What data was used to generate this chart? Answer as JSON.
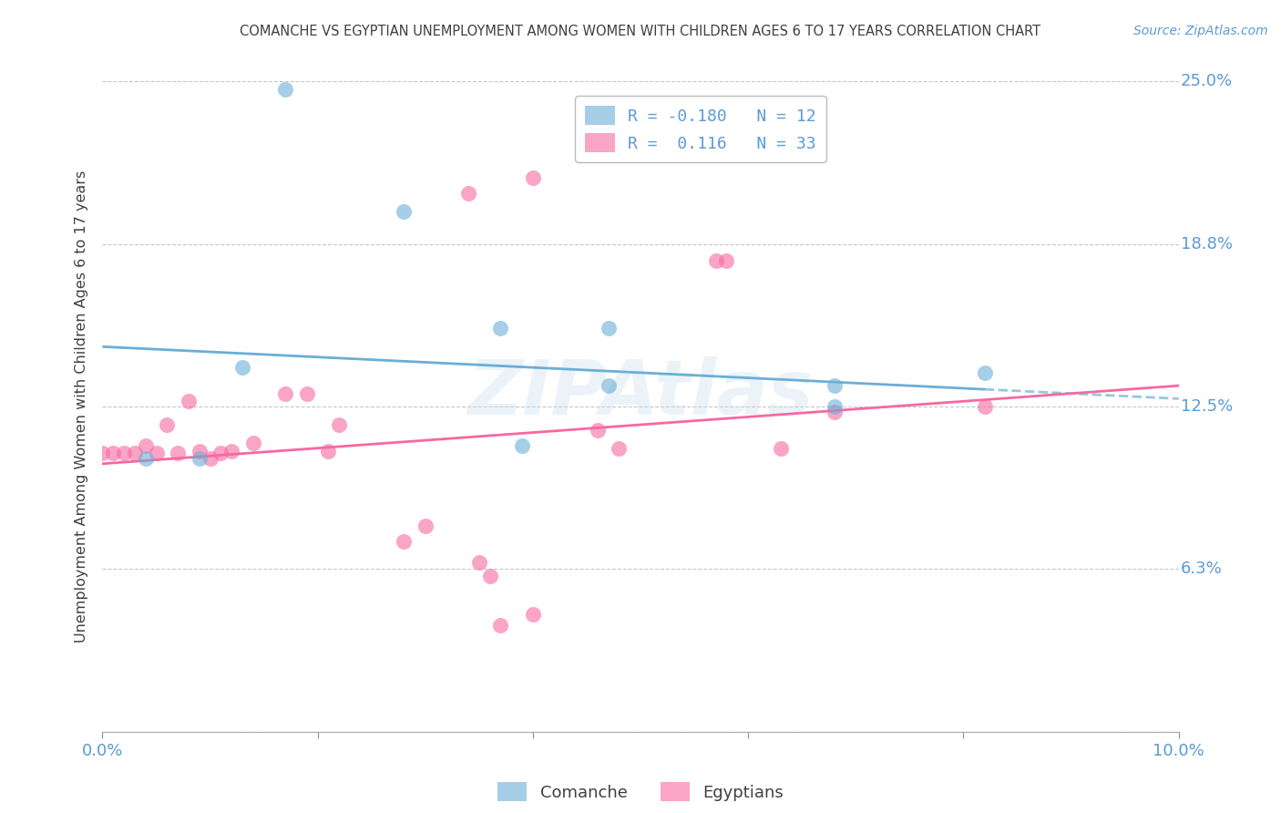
{
  "title": "COMANCHE VS EGYPTIAN UNEMPLOYMENT AMONG WOMEN WITH CHILDREN AGES 6 TO 17 YEARS CORRELATION CHART",
  "source": "Source: ZipAtlas.com",
  "ylabel": "Unemployment Among Women with Children Ages 6 to 17 years",
  "ylim": [
    0.0,
    0.25
  ],
  "xlim": [
    0.0,
    0.1
  ],
  "comanche_color": "#6baed6",
  "egyptians_color": "#f768a1",
  "comanche_R": -0.18,
  "comanche_N": 12,
  "egyptians_R": 0.116,
  "egyptians_N": 33,
  "comanche_x": [
    0.004,
    0.009,
    0.013,
    0.017,
    0.028,
    0.037,
    0.039,
    0.047,
    0.047,
    0.068,
    0.068,
    0.082
  ],
  "comanche_y": [
    0.105,
    0.105,
    0.14,
    0.247,
    0.2,
    0.155,
    0.11,
    0.133,
    0.155,
    0.125,
    0.133,
    0.138
  ],
  "egyptians_x": [
    0.0,
    0.001,
    0.002,
    0.003,
    0.004,
    0.005,
    0.006,
    0.007,
    0.008,
    0.009,
    0.01,
    0.011,
    0.012,
    0.014,
    0.017,
    0.019,
    0.021,
    0.022,
    0.028,
    0.03,
    0.034,
    0.035,
    0.036,
    0.037,
    0.04,
    0.04,
    0.046,
    0.048,
    0.057,
    0.058,
    0.063,
    0.068,
    0.082
  ],
  "egyptians_y": [
    0.107,
    0.107,
    0.107,
    0.107,
    0.11,
    0.107,
    0.118,
    0.107,
    0.127,
    0.108,
    0.105,
    0.107,
    0.108,
    0.111,
    0.13,
    0.13,
    0.108,
    0.118,
    0.073,
    0.079,
    0.207,
    0.065,
    0.06,
    0.041,
    0.045,
    0.213,
    0.116,
    0.109,
    0.181,
    0.181,
    0.109,
    0.123,
    0.125
  ],
  "watermark": "ZIPAtlas",
  "background_color": "#ffffff",
  "grid_color": "#c8c8c8",
  "title_color": "#404040",
  "tick_color": "#5b9bd5",
  "blue_line_x0": 0.0,
  "blue_line_y0": 0.148,
  "blue_line_x1": 0.1,
  "blue_line_y1": 0.128,
  "pink_line_x0": 0.0,
  "pink_line_y0": 0.103,
  "pink_line_x1": 0.1,
  "pink_line_y1": 0.133
}
